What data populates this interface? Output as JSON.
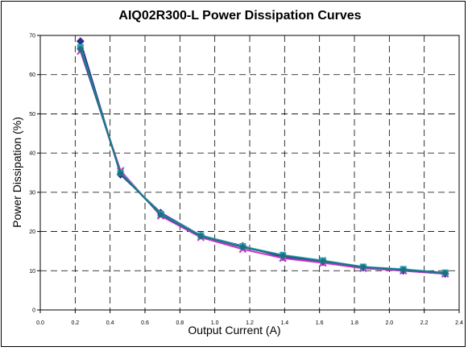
{
  "chart_data": {
    "type": "line",
    "title": "AIQ02R300-L Power Dissipation Curves",
    "xlabel": "Output Current (A)",
    "ylabel": "Power Dissipation (%)",
    "xlim": [
      0.0,
      2.4
    ],
    "ylim": [
      0,
      70
    ],
    "x_ticks": [
      "0.0",
      "0.2",
      "0.4",
      "0.6",
      "0.8",
      "1.0",
      "1.2",
      "1.4",
      "1.6",
      "1.8",
      "2.0",
      "2.2",
      "2.4"
    ],
    "y_ticks": [
      "0",
      "10",
      "20",
      "30",
      "40",
      "50",
      "60",
      "70"
    ],
    "grid": true,
    "grid_style": "dashed",
    "legend": "none",
    "x": [
      0.23,
      0.46,
      0.69,
      0.92,
      1.16,
      1.39,
      1.62,
      1.85,
      2.08,
      2.32
    ],
    "series": [
      {
        "color": "#2e2e8c",
        "marker": "diamond",
        "values": [
          68.5,
          34.5,
          24.8,
          19.0,
          16.3,
          13.5,
          12.2,
          10.8,
          10.0,
          9.2
        ]
      },
      {
        "color": "#cc33cc",
        "marker": "x",
        "values": [
          66.0,
          35.5,
          24.0,
          18.5,
          15.5,
          13.2,
          12.0,
          10.6,
          10.0,
          9.2
        ]
      },
      {
        "color": "#2aa5b5",
        "marker": "square",
        "values": [
          67.0,
          35.0,
          24.5,
          19.0,
          16.2,
          14.0,
          12.6,
          11.0,
          10.4,
          9.5
        ]
      },
      {
        "color": "#1f6f80",
        "marker": "circle",
        "values": [
          66.5,
          34.8,
          24.3,
          18.8,
          16.0,
          13.8,
          12.4,
          10.9,
          10.2,
          9.4
        ]
      }
    ]
  }
}
